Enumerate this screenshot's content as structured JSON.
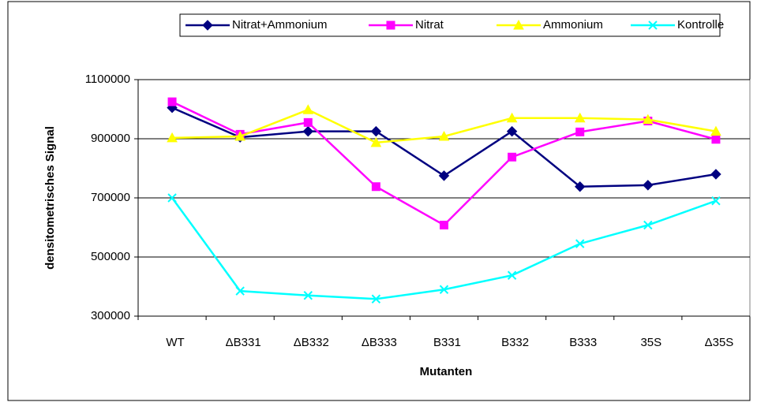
{
  "chart_data": {
    "type": "line",
    "x_label": "Mutanten",
    "y_label": "densitometrisches Signal",
    "categories": [
      "WT",
      "ΔB331",
      "ΔB332",
      "ΔB333",
      "B331",
      "B332",
      "B333",
      "35S",
      "Δ35S"
    ],
    "series": [
      {
        "name": "Nitrat+Ammonium",
        "color": "#000080",
        "marker": "diamond",
        "values": [
          1005000,
          905000,
          925000,
          925000,
          775000,
          925000,
          738000,
          743000,
          780000
        ]
      },
      {
        "name": "Nitrat",
        "color": "#ff00ff",
        "marker": "square",
        "values": [
          1025000,
          915000,
          955000,
          738000,
          608000,
          838000,
          923000,
          960000,
          898000
        ]
      },
      {
        "name": "Ammonium",
        "color": "#ffff00",
        "marker": "triangle",
        "values": [
          903000,
          908000,
          998000,
          887000,
          908000,
          970000,
          970000,
          965000,
          925000
        ]
      },
      {
        "name": "Kontrolle",
        "color": "#00ffff",
        "marker": "x",
        "values": [
          700000,
          385000,
          370000,
          358000,
          390000,
          438000,
          545000,
          608000,
          690000
        ]
      }
    ],
    "ylim": [
      300000,
      1100000
    ],
    "yticks": [
      300000,
      500000,
      700000,
      900000,
      1100000
    ],
    "grid": true,
    "legend": "top"
  }
}
